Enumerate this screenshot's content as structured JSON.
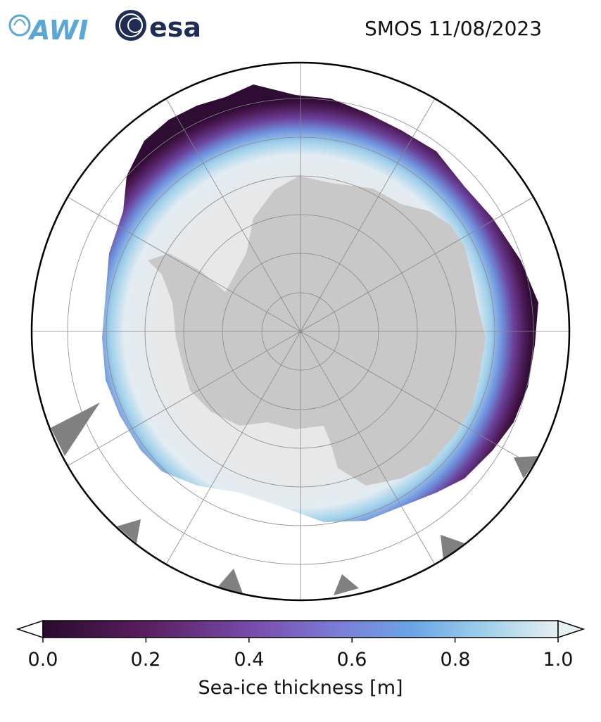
{
  "title": "SMOS 11/08/2023",
  "logos": {
    "awi": "AWI",
    "esa": "esa"
  },
  "colorbar": {
    "label": "Sea-ice thickness [m]",
    "ticks": [
      "0.0",
      "0.2",
      "0.4",
      "0.6",
      "0.8",
      "1.0"
    ],
    "range": [
      0.0,
      1.0
    ],
    "extend": "both",
    "colors": [
      "#2a0a2e",
      "#5a1e60",
      "#7a4fb0",
      "#7a7fd8",
      "#6aa6e6",
      "#9fd0ea",
      "#e6f0f0"
    ]
  },
  "map": {
    "projection": "South Polar Stereographic",
    "land_color": "#c8c8c8",
    "ocean_color": "#ffffff",
    "thick_ice_color": "#e8e8e8",
    "missing_color": "#808080"
  }
}
